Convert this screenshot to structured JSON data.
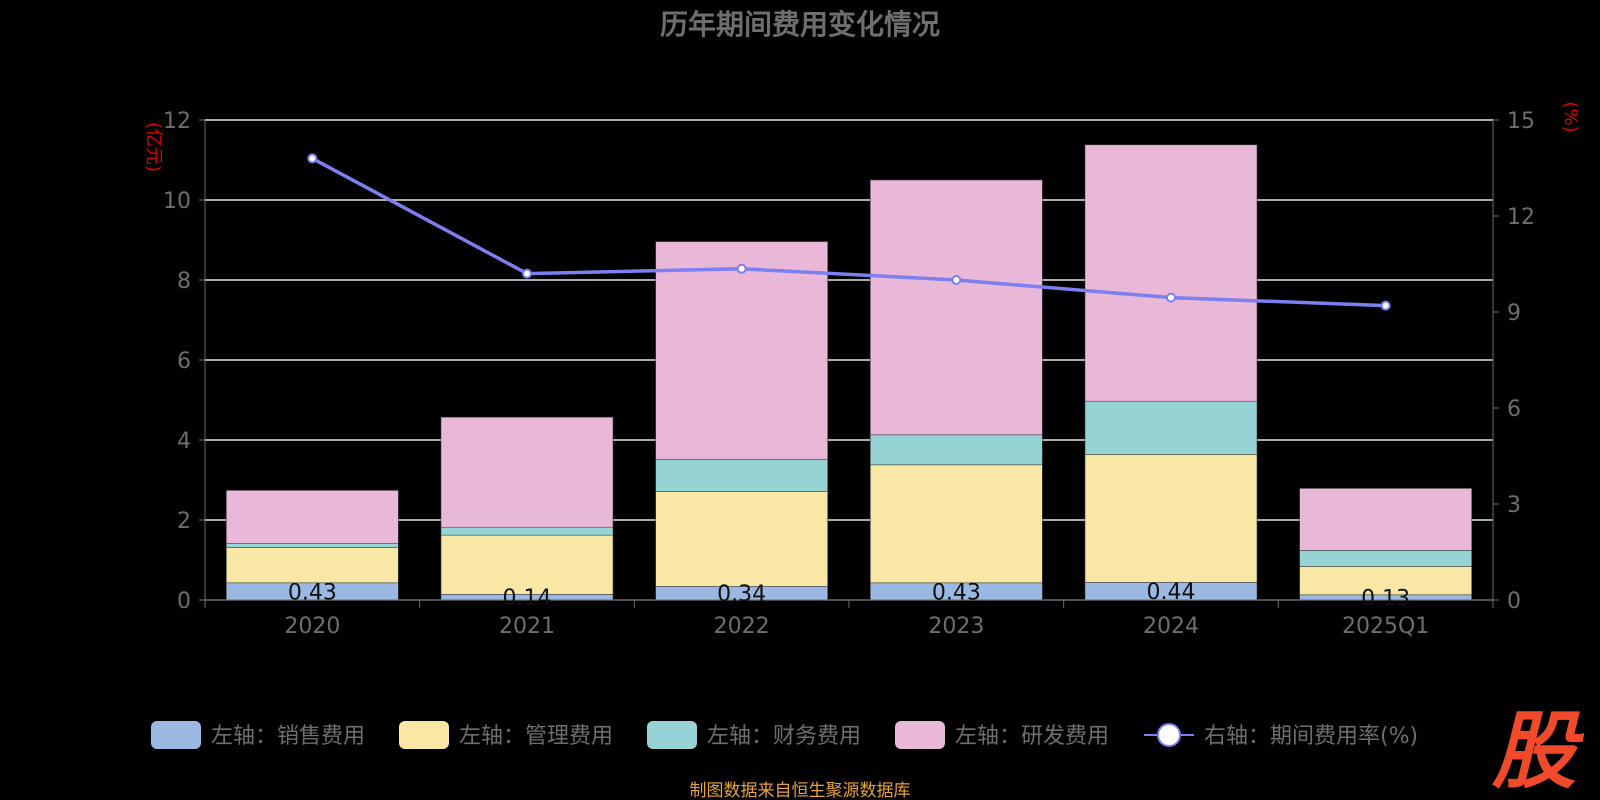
{
  "chart_data": {
    "type": "bar",
    "title": "历年期间费用变化情况",
    "categories": [
      "2020",
      "2021",
      "2022",
      "2023",
      "2024",
      "2025Q1"
    ],
    "left_axis": {
      "unit": "(亿元)",
      "ylim": [
        0,
        12
      ],
      "ticks": [
        "0",
        "2",
        "4",
        "6",
        "8",
        "10",
        "12"
      ]
    },
    "right_axis": {
      "unit": "(%)",
      "ylim": [
        0,
        15
      ],
      "ticks": [
        "0",
        "3",
        "6",
        "9",
        "12",
        "15"
      ]
    },
    "stacked": true,
    "grid": true,
    "series": [
      {
        "name": "左轴：销售费用",
        "type": "bar",
        "axis": "left",
        "color": "#9bb8e3",
        "values": [
          0.43,
          0.14,
          0.34,
          0.43,
          0.44,
          0.13
        ],
        "labels": [
          "0.43",
          "0.14",
          "0.34",
          "0.43",
          "0.44",
          "0.13"
        ]
      },
      {
        "name": "左轴：管理费用",
        "type": "bar",
        "axis": "left",
        "color": "#f9e7a6",
        "values": [
          0.88,
          1.48,
          2.37,
          2.95,
          3.2,
          0.71
        ]
      },
      {
        "name": "左轴：财务费用",
        "type": "bar",
        "axis": "left",
        "color": "#96d3d5",
        "values": [
          0.1,
          0.2,
          0.8,
          0.75,
          1.33,
          0.4
        ]
      },
      {
        "name": "左轴：研发费用",
        "type": "bar",
        "axis": "left",
        "color": "#e9b8d9",
        "values": [
          1.33,
          2.75,
          5.45,
          6.37,
          6.41,
          1.55
        ]
      },
      {
        "name": "右轴：期间费用率(%)",
        "type": "line",
        "axis": "right",
        "color": "#7b7ff0",
        "values": [
          13.8,
          10.2,
          10.35,
          10.0,
          9.45,
          9.2
        ]
      }
    ],
    "legend_position": "bottom"
  },
  "footer": {
    "source": "制图数据来自恒生聚源数据库",
    "logo": "股"
  }
}
